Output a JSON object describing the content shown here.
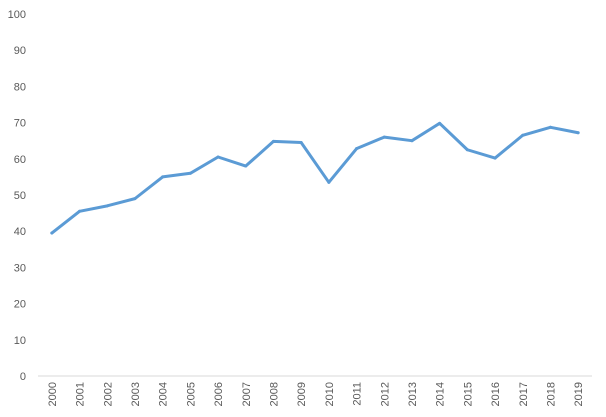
{
  "chart_data": {
    "type": "line",
    "categories": [
      "2000",
      "2001",
      "2002",
      "2003",
      "2004",
      "2005",
      "2006",
      "2007",
      "2008",
      "2009",
      "2010",
      "2011",
      "2012",
      "2013",
      "2014",
      "2015",
      "2016",
      "2017",
      "2018",
      "2019"
    ],
    "series": [
      {
        "color": "#5b9bd5",
        "values": [
          39.5,
          45.5,
          47,
          49,
          55,
          56,
          60.5,
          58,
          64.8,
          64.5,
          53.5,
          62.8,
          66,
          65,
          69.8,
          62.5,
          60.2,
          66.5,
          68.7,
          67.2
        ]
      }
    ],
    "ylim": [
      0,
      100
    ],
    "yticks": [
      0,
      10,
      20,
      30,
      40,
      50,
      60,
      70,
      80,
      90,
      100
    ],
    "grid": false,
    "legend": "none"
  }
}
